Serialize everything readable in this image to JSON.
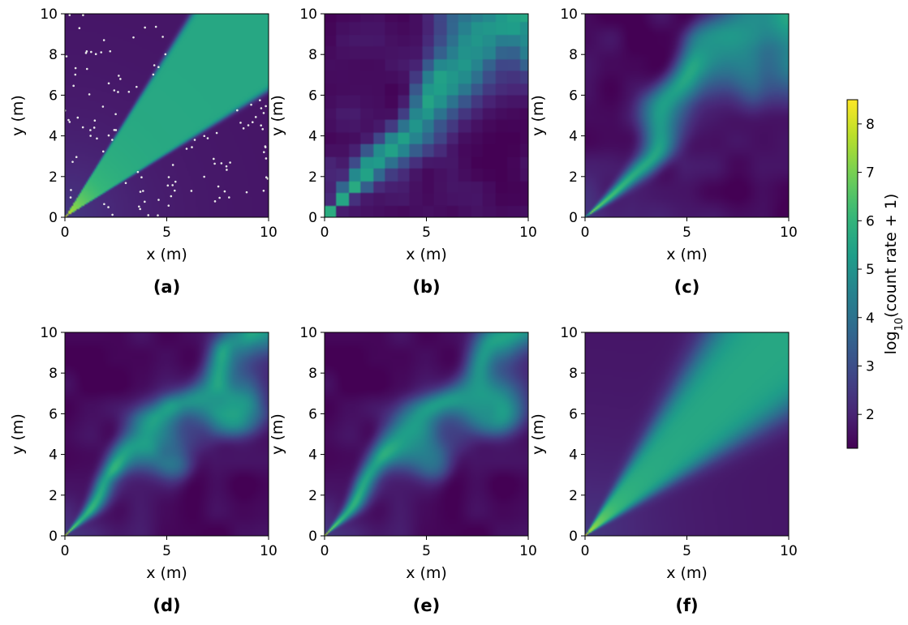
{
  "chart_data": {
    "type": "heatmap",
    "colormap": "viridis",
    "value_range": [
      1.3,
      8.5
    ],
    "colorbar": {
      "label_prefix": "log",
      "label_sub": "10",
      "label_suffix": "(count rate + 1)",
      "ticks": [
        "2",
        "3",
        "4",
        "5",
        "6",
        "7",
        "8"
      ]
    },
    "panels": [
      {
        "id": "a",
        "label": "(a)",
        "pattern": "wedge_sharp",
        "measurement_points": true
      },
      {
        "id": "b",
        "label": "(b)",
        "pattern": "blocky"
      },
      {
        "id": "c",
        "label": "(c)",
        "pattern": "smooth"
      },
      {
        "id": "d",
        "label": "(d)",
        "pattern": "patchy"
      },
      {
        "id": "e",
        "label": "(e)",
        "pattern": "patchy_smooth"
      },
      {
        "id": "f",
        "label": "(f)",
        "pattern": "wedge_smooth"
      }
    ],
    "xlabel": "x (m)",
    "ylabel": "y (m)",
    "xlim": [
      0,
      10
    ],
    "ylim": [
      0,
      10
    ],
    "x_ticks": [
      "0",
      "5",
      "10"
    ],
    "y_ticks": [
      "0",
      "2",
      "4",
      "6",
      "8",
      "10"
    ],
    "source": {
      "origin": [
        0,
        0
      ],
      "wedge_angles_deg": [
        32,
        58
      ]
    }
  }
}
